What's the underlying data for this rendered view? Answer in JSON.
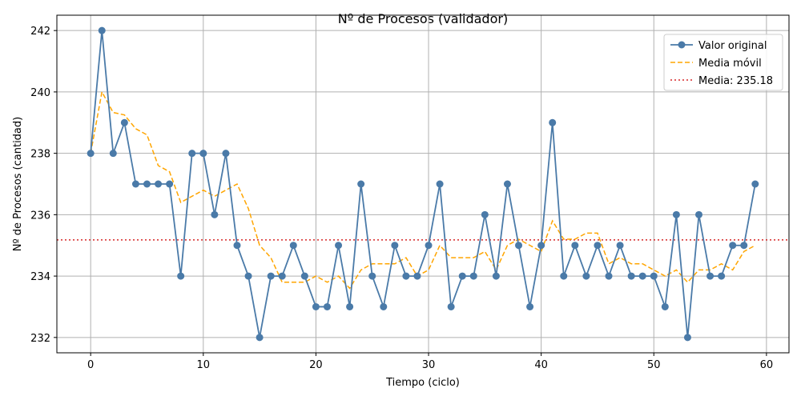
{
  "chart_data": {
    "type": "line",
    "title": "Nº de Procesos (validador)",
    "xlabel": "Tiempo (ciclo)",
    "ylabel": "Nº de Procesos (cantidad)",
    "xlim": [
      -3,
      62
    ],
    "ylim": [
      231.5,
      242.5
    ],
    "xticks": [
      0,
      10,
      20,
      30,
      40,
      50,
      60
    ],
    "yticks": [
      232,
      234,
      236,
      238,
      240,
      242
    ],
    "grid": true,
    "legend_position": "top-right",
    "x": [
      0,
      1,
      2,
      3,
      4,
      5,
      6,
      7,
      8,
      9,
      10,
      11,
      12,
      13,
      14,
      15,
      16,
      17,
      18,
      19,
      20,
      21,
      22,
      23,
      24,
      25,
      26,
      27,
      28,
      29,
      30,
      31,
      32,
      33,
      34,
      35,
      36,
      37,
      38,
      39,
      40,
      41,
      42,
      43,
      44,
      45,
      46,
      47,
      48,
      49,
      50,
      51,
      52,
      53,
      54,
      55,
      56,
      57,
      58,
      59
    ],
    "series": [
      {
        "name": "Valor original",
        "style": "solid-markers",
        "color": "#4a7aa8",
        "values": [
          238,
          242,
          238,
          239,
          237,
          237,
          237,
          237,
          234,
          238,
          238,
          236,
          238,
          235,
          234,
          232,
          234,
          234,
          235,
          234,
          233,
          233,
          235,
          233,
          237,
          234,
          233,
          235,
          234,
          234,
          235,
          237,
          233,
          234,
          234,
          236,
          234,
          237,
          235,
          233,
          235,
          239,
          234,
          235,
          234,
          235,
          234,
          235,
          234,
          234,
          234,
          233,
          236,
          232,
          236,
          234,
          234,
          235,
          235,
          237
        ]
      },
      {
        "name": "Media móvil",
        "style": "dashed",
        "color": "#ffa500",
        "values": [
          238,
          240,
          239.33,
          239.25,
          238.8,
          238.6,
          237.6,
          237.4,
          236.4,
          236.6,
          236.8,
          236.6,
          236.8,
          237,
          236.2,
          235,
          234.6,
          233.8,
          233.8,
          233.8,
          234,
          233.8,
          234,
          233.6,
          234.2,
          234.4,
          234.4,
          234.4,
          234.6,
          234,
          234.2,
          235,
          234.6,
          234.6,
          234.6,
          234.8,
          234.2,
          235,
          235.2,
          235,
          234.8,
          235.8,
          235.2,
          235.2,
          235.4,
          235.4,
          234.4,
          234.6,
          234.4,
          234.4,
          234.2,
          234,
          234.2,
          233.8,
          234.2,
          234.2,
          234.4,
          234.2,
          234.8,
          235
        ]
      }
    ],
    "hlines": [
      {
        "name": "Media: 235.18",
        "value": 235.18,
        "style": "dotted",
        "color": "#d62728"
      }
    ]
  }
}
